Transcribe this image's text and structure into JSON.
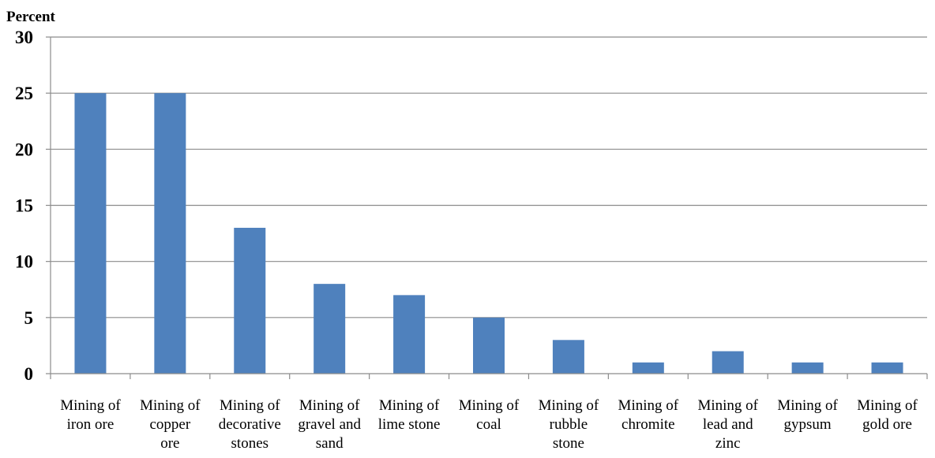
{
  "chart_data": {
    "type": "bar",
    "ylabel": "Percent",
    "xlabel": "",
    "ylim": [
      0,
      30
    ],
    "yticks": [
      "0",
      "5",
      "10",
      "15",
      "20",
      "25",
      "30"
    ],
    "grid": true,
    "legend": "none",
    "bar_color": "#4f81bd",
    "categories": [
      [
        "Mining of",
        "iron ore"
      ],
      [
        "Mining of",
        "copper",
        "ore"
      ],
      [
        "Mining of",
        "decorative",
        "stones"
      ],
      [
        "Mining of",
        "gravel and",
        "sand"
      ],
      [
        "Mining of",
        "lime stone"
      ],
      [
        "Mining of",
        "coal"
      ],
      [
        "Mining of",
        "rubble",
        "stone"
      ],
      [
        "Mining of",
        "chromite"
      ],
      [
        "Mining of",
        "lead and",
        "zinc"
      ],
      [
        "Mining of",
        "gypsum"
      ],
      [
        "Mining of",
        "gold ore"
      ]
    ],
    "values": [
      25,
      25,
      13,
      8,
      7,
      5,
      3,
      1,
      2,
      1,
      1
    ]
  }
}
